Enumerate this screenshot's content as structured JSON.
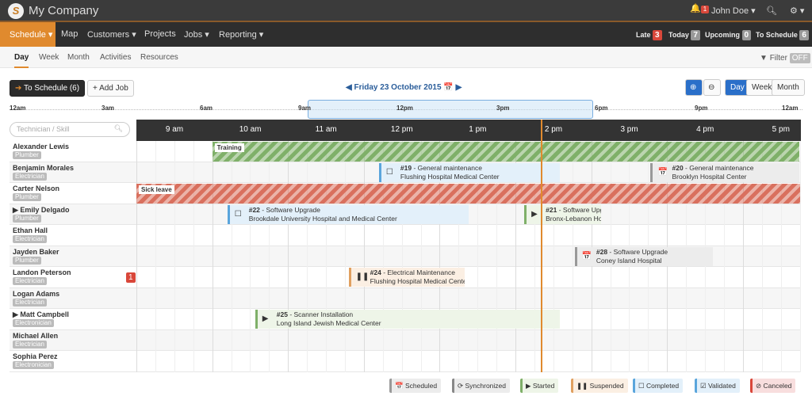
{
  "app": {
    "brand": "My Company",
    "logo_letter": "S",
    "notifications": "1",
    "user": "John Doe ▾",
    "search_icon": "search-icon",
    "settings": "⚙ ▾"
  },
  "nav": {
    "items": [
      "Schedule ▾",
      "Map",
      "Customers ▾",
      "Projects",
      "Jobs ▾",
      "Reporting ▾"
    ],
    "counters": [
      {
        "label": "Late",
        "count": "3",
        "color": "#d9473a"
      },
      {
        "label": "Today",
        "count": "7",
        "color": "#999"
      },
      {
        "label": "Upcoming",
        "count": "0",
        "color": "#999"
      },
      {
        "label": "To Schedule",
        "count": "6",
        "color": "#999"
      }
    ]
  },
  "subnav": {
    "items": [
      "Day",
      "Week",
      "Month",
      "Activities",
      "Resources"
    ],
    "filter_label": "Filter",
    "filter_state": "OFF"
  },
  "toolbar": {
    "to_schedule": "To Schedule (6)",
    "add_job": "+ Add Job",
    "date": "Friday 23 October 2015",
    "views": [
      "Day",
      "Week",
      "Month"
    ],
    "active_view": "Day"
  },
  "overview": {
    "ticks": [
      "12am",
      "3am",
      "6am",
      "9am",
      "12pm",
      "3pm",
      "6pm",
      "9pm",
      "12am"
    ]
  },
  "grid": {
    "search_placeholder": "Technician / Skill",
    "hours": [
      "9 am",
      "10 am",
      "11 am",
      "12 pm",
      "1 pm",
      "2 pm",
      "3 pm",
      "4 pm",
      "5 pm"
    ],
    "current_time": "14:20",
    "technicians": [
      {
        "name": "Alexander Lewis",
        "skill": "Plumber"
      },
      {
        "name": "Benjamin Morales",
        "skill": "Electrician"
      },
      {
        "name": "Carter Nelson",
        "skill": "Plumber"
      },
      {
        "name": "Emily Delgado",
        "skill": "Plumber",
        "expand": "▶"
      },
      {
        "name": "Ethan Hall",
        "skill": "Electrician"
      },
      {
        "name": "Jayden Baker",
        "skill": "Plumber"
      },
      {
        "name": "Landon Peterson",
        "skill": "Electrician",
        "alert": "1"
      },
      {
        "name": "Logan Adams",
        "skill": "Electrician"
      },
      {
        "name": "Matt Campbell",
        "skill": "Electronician",
        "expand": "▶"
      },
      {
        "name": "Michael Allen",
        "skill": "Electrician"
      },
      {
        "name": "Sophia Perez",
        "skill": "Electronician"
      }
    ],
    "absences": [
      {
        "row": 0,
        "label": "Training",
        "start": "10:00",
        "end": "17:45",
        "color": "#7fb069"
      },
      {
        "row": 2,
        "label": "Sick leave",
        "start": "09:00",
        "end": "17:45",
        "color": "#d9705e"
      }
    ],
    "jobs": [
      {
        "row": 1,
        "id": "#19",
        "title": "General maintenance",
        "place": "Flushing Hospital Medical Center",
        "start": "12:12",
        "end": "14:35",
        "status": "completed"
      },
      {
        "row": 1,
        "id": "#20",
        "title": "General maintenance",
        "place": "Brooklyn Hospital Center",
        "start": "15:47",
        "end": "17:45",
        "status": "scheduled"
      },
      {
        "row": 3,
        "id": "#22",
        "title": "Software Upgrade",
        "place": "Brookdale University Hospital and Medical Center",
        "start": "10:12",
        "end": "13:23",
        "status": "completed"
      },
      {
        "row": 3,
        "id": "#21",
        "title": "Software Upgrade",
        "place": "Bronx-Lebanon Hospital Center",
        "start": "14:07",
        "end": "15:08",
        "status": "started"
      },
      {
        "row": 5,
        "id": "#28",
        "title": "Software Upgrade",
        "place": "Coney Island Hospital",
        "start": "14:47",
        "end": "16:36",
        "status": "scheduled"
      },
      {
        "row": 6,
        "id": "#24",
        "title": "Electrical Maintenance",
        "place": "Flushing Hospital Medical Center",
        "start": "11:48",
        "end": "13:20",
        "status": "suspended"
      },
      {
        "row": 8,
        "id": "#25",
        "title": "Scanner Installation",
        "place": "Long Island Jewish Medical Center",
        "start": "10:34",
        "end": "14:35",
        "status": "started"
      }
    ]
  },
  "statuses": {
    "scheduled": {
      "label": "Scheduled",
      "icon": "📅",
      "color": "#999",
      "bg": "#ececec"
    },
    "synchronized": {
      "label": "Synchronized",
      "icon": "⟳",
      "color": "#888",
      "bg": "#ececec"
    },
    "started": {
      "label": "Started",
      "icon": "▶",
      "color": "#7fb069",
      "bg": "#eef5e8"
    },
    "suspended": {
      "label": "Suspended",
      "icon": "❚❚",
      "color": "#e0a060",
      "bg": "#fbefe3"
    },
    "completed": {
      "label": "Completed",
      "icon": "☐",
      "color": "#5aa5dc",
      "bg": "#e3f0fa"
    },
    "validated": {
      "label": "Validated",
      "icon": "☑",
      "color": "#5aa5dc",
      "bg": "#e3f0fa"
    },
    "canceled": {
      "label": "Canceled",
      "icon": "⊘",
      "color": "#d9473a",
      "bg": "#f8dede"
    }
  }
}
